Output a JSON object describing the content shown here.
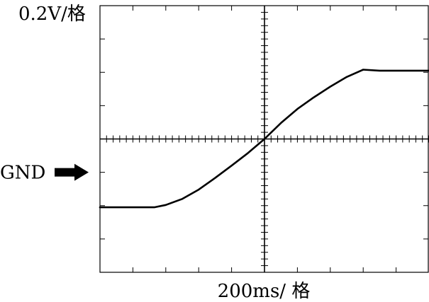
{
  "chart_data": {
    "type": "line",
    "title": "",
    "ylabel": "0.2V/格",
    "xlabel": "200ms/ 格",
    "marker": {
      "label": "GND",
      "y": -1.0
    },
    "xlim": [
      -5,
      5
    ],
    "ylim": [
      -4,
      4
    ],
    "xticks_major_step": 1,
    "yticks_major_step": 1,
    "minor_ticks_per_division": 5,
    "grid": false,
    "series": [
      {
        "name": "",
        "x": [
          -5.0,
          -3.35,
          -3.0,
          -2.5,
          -2.0,
          -1.5,
          -1.0,
          -0.5,
          0.0,
          0.5,
          1.0,
          1.5,
          2.0,
          2.5,
          3.0,
          3.5,
          4.0,
          5.0
        ],
        "y": [
          -2.05,
          -2.05,
          -1.98,
          -1.8,
          -1.52,
          -1.17,
          -0.8,
          -0.42,
          0.0,
          0.48,
          0.9,
          1.25,
          1.57,
          1.86,
          2.08,
          2.05,
          2.05,
          2.05
        ]
      }
    ]
  }
}
